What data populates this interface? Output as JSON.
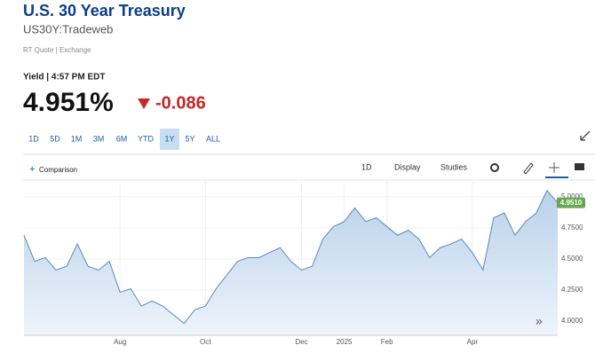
{
  "header": {
    "title": "U.S. 30 Year Treasury",
    "symbol": "US30Y:Tradeweb",
    "quote_source": "RT Quote | Exchange",
    "quote_time": "Yield | 4:57 PM EDT",
    "price": "4.951%",
    "change": "-0.086"
  },
  "ranges": {
    "items": [
      "1D",
      "5D",
      "1M",
      "3M",
      "6M",
      "YTD",
      "1Y",
      "5Y",
      "ALL"
    ],
    "selected": 6
  },
  "toolbar": {
    "comparison": "Comparison",
    "interval": "1D",
    "display": "Display",
    "studies": "Studies"
  },
  "chart_data": {
    "type": "area",
    "categories": [
      null,
      null,
      null,
      null,
      null,
      null,
      null,
      null,
      null,
      "Aug",
      null,
      null,
      null,
      null,
      null,
      null,
      null,
      "Oct",
      null,
      null,
      null,
      null,
      null,
      null,
      null,
      null,
      "Dec",
      null,
      null,
      null,
      "2025",
      null,
      null,
      null,
      "Feb",
      null,
      null,
      null,
      null,
      null,
      null,
      null,
      "Apr",
      null,
      null,
      null,
      null,
      null,
      null,
      null,
      null
    ],
    "values": [
      4.69,
      4.48,
      4.51,
      4.41,
      4.44,
      4.62,
      4.44,
      4.41,
      4.48,
      4.23,
      4.26,
      4.12,
      4.16,
      4.12,
      4.05,
      3.98,
      4.09,
      4.12,
      4.26,
      4.37,
      4.48,
      4.51,
      4.51,
      4.55,
      4.59,
      4.48,
      4.41,
      4.44,
      4.66,
      4.76,
      4.8,
      4.91,
      4.8,
      4.83,
      4.76,
      4.69,
      4.73,
      4.66,
      4.51,
      4.59,
      4.62,
      4.66,
      4.55,
      4.41,
      4.83,
      4.87,
      4.69,
      4.8,
      4.87,
      5.05,
      4.951
    ],
    "last_label": "4.9510",
    "color": "#5a88bd",
    "ylim": [
      3.885,
      5.12
    ],
    "yticks": [
      {
        "value": 4,
        "label": "4.0000"
      },
      {
        "value": 4.25,
        "label": "4.2500"
      },
      {
        "value": 4.5,
        "label": "4.5000"
      },
      {
        "value": 4.75,
        "label": "4.7500"
      },
      {
        "value": 5,
        "label": "5.0000"
      }
    ],
    "grid": true
  }
}
